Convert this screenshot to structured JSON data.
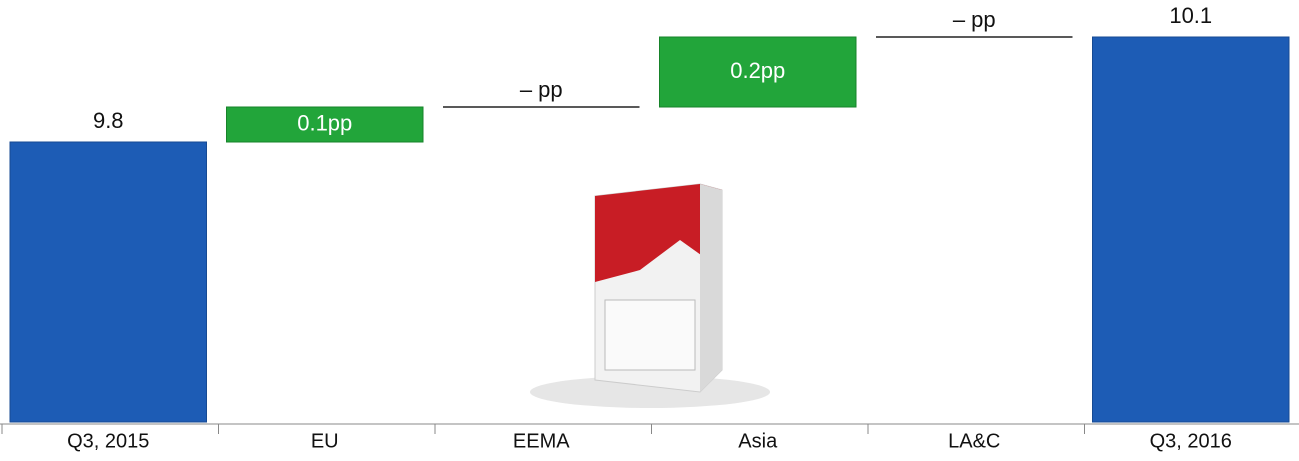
{
  "chart_data": {
    "type": "waterfall",
    "categories": [
      "Q3, 2015",
      "EU",
      "EEMA",
      "Asia",
      "LA&C",
      "Q3, 2016"
    ],
    "values": [
      9.8,
      0.1,
      0,
      0.2,
      0,
      10.1
    ],
    "value_labels": [
      "9.8",
      "0.1pp",
      "– pp",
      "0.2pp",
      "– pp",
      "10.1"
    ],
    "total_color": "#1d5cb5",
    "increase_color": "#22a53a"
  }
}
